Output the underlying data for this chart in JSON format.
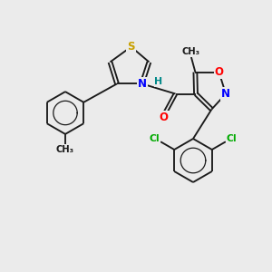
{
  "background_color": "#ebebeb",
  "bond_color": "#1a1a1a",
  "atom_colors": {
    "S": "#c8a000",
    "N": "#0000ff",
    "O": "#ff0000",
    "Cl": "#00aa00",
    "H": "#008888",
    "C": "#1a1a1a"
  },
  "figsize": [
    3.0,
    3.0
  ],
  "dpi": 100
}
